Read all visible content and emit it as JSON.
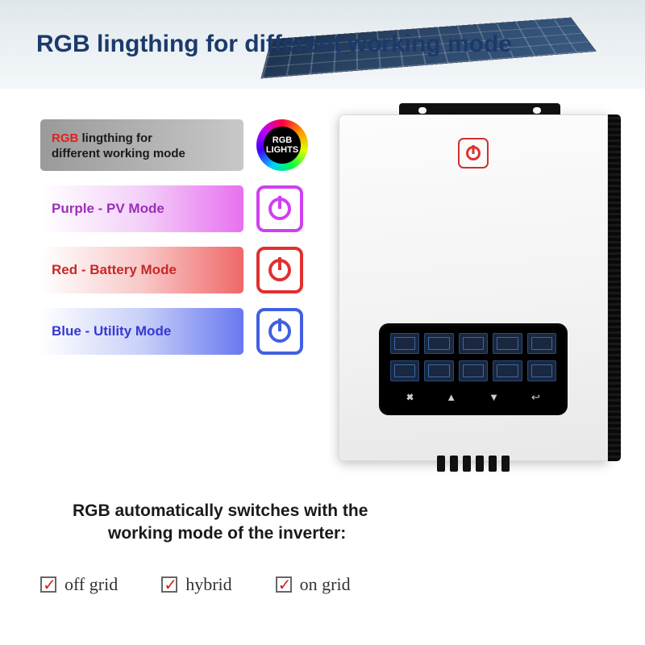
{
  "title": "RGB lingthing for different working mode",
  "rgb_badge": {
    "line1": "RGB",
    "line2": "LIGHTS"
  },
  "intro_bar": {
    "w1": "RGB",
    "w2": "lingthing",
    "w3": "for",
    "line2": "different working mode"
  },
  "modes": [
    {
      "label": "Purple - PV Mode",
      "bar_class": "bar-purple",
      "text_color": "#9b2fb8",
      "icon_class": "ib-purple",
      "icon_color_class": "c-purple"
    },
    {
      "label": "Red - Battery Mode",
      "bar_class": "bar-red",
      "text_color": "#c82828",
      "icon_class": "ib-red",
      "icon_color_class": "c-red"
    },
    {
      "label": "Blue - Utility Mode",
      "bar_class": "bar-blue",
      "text_color": "#3838d0",
      "icon_class": "ib-blue",
      "icon_color_class": "c-blue"
    }
  ],
  "footer": {
    "line1": "RGB automatically switches with the",
    "line2": "working mode of the inverter:"
  },
  "checks": [
    "off grid",
    "hybrid",
    "on grid"
  ],
  "screen_buttons": [
    "🞮",
    "▲",
    "▼",
    "↩"
  ]
}
